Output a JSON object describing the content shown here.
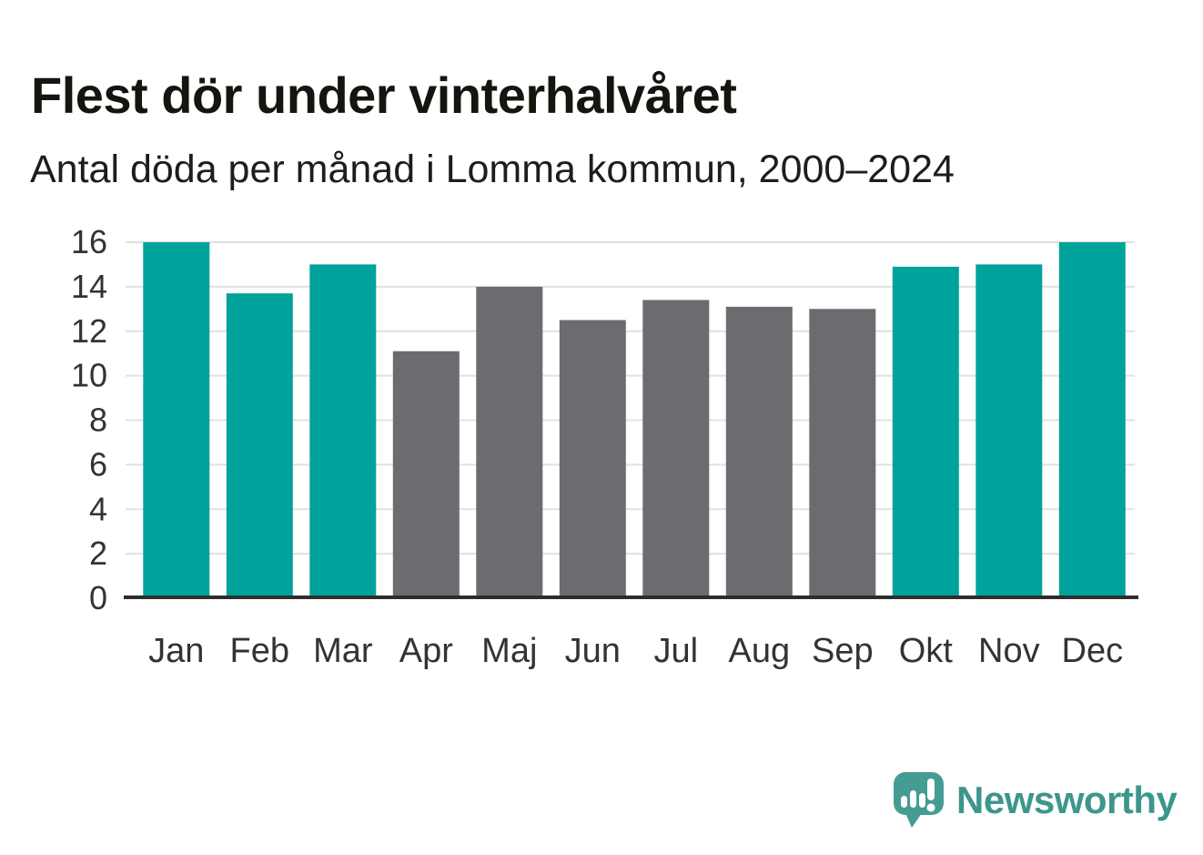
{
  "header": {
    "title": "Flest dör under vinterhalvåret",
    "subtitle": "Antal döda per månad i Lomma kommun, 2000–2024"
  },
  "chart_data": {
    "type": "bar",
    "title": "Flest dör under vinterhalvåret",
    "subtitle": "Antal döda per månad i Lomma kommun, 2000–2024",
    "categories": [
      "Jan",
      "Feb",
      "Mar",
      "Apr",
      "Maj",
      "Jun",
      "Jul",
      "Aug",
      "Sep",
      "Okt",
      "Nov",
      "Dec"
    ],
    "values": [
      16.0,
      13.7,
      15.0,
      11.1,
      14.0,
      12.5,
      13.4,
      13.1,
      13.0,
      14.9,
      15.0,
      16.0
    ],
    "groups": [
      "winter",
      "winter",
      "winter",
      "summer",
      "summer",
      "summer",
      "summer",
      "summer",
      "summer",
      "winter",
      "winter",
      "winter"
    ],
    "group_colors": {
      "winter": "#00a39b",
      "summer": "#6c6c70"
    },
    "xlabel": "",
    "ylabel": "",
    "ylim": [
      0,
      16
    ],
    "yticks": [
      0,
      2,
      4,
      6,
      8,
      10,
      12,
      14,
      16
    ],
    "grid": "horizontal",
    "legend": "none",
    "gridline_color": "#e1e1e1",
    "axis_line_color": "#2d2d2d",
    "tick_label_color": "#333333"
  },
  "footer": {
    "brand": "Newsworthy",
    "brand_text_color": "#3d968c",
    "logo_mark_color": "#459c92",
    "logo_icon": "speech-bubble-bar-chart-exclamation"
  }
}
